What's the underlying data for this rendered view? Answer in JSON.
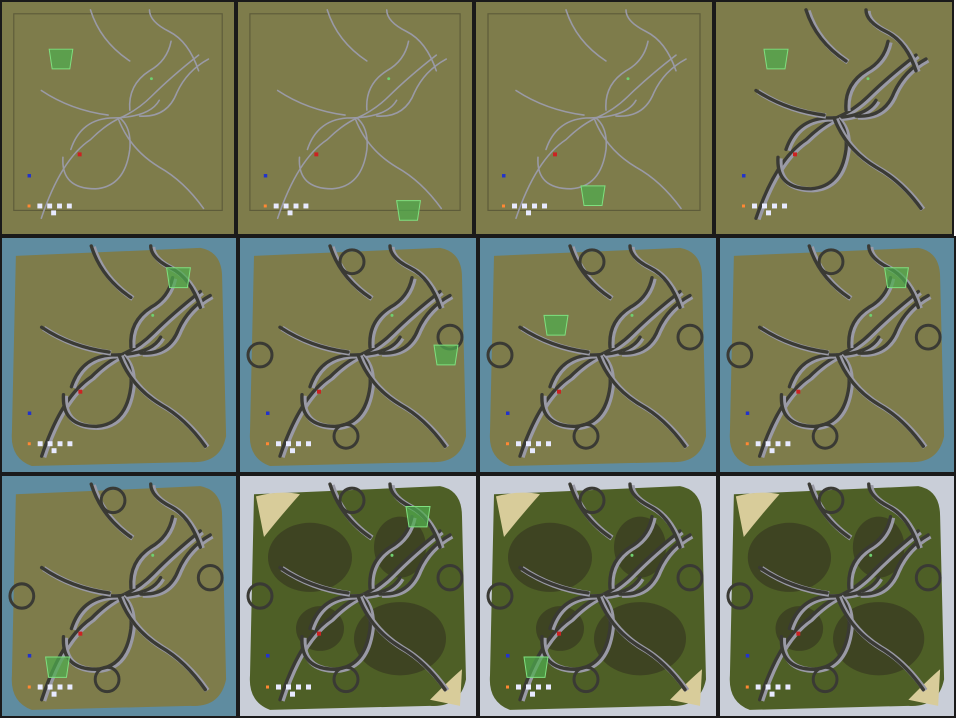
{
  "colors": {
    "grass": "#7e7c4b",
    "grass_dark": "#6f6d40",
    "water": "#5f8ca0",
    "road_dark": "#3a3a34",
    "road_light": "#9a9aa6",
    "highlight": "#4fae4f",
    "player_red": "#cc2222",
    "player_blue": "#2233cc",
    "marker_orange": "#ff8833",
    "marker_white": "#e8eaff",
    "textured_grass": "#4e5f26",
    "textured_dark": "#3e4422",
    "sand": "#d8cc9a",
    "snow": "#c9ced8"
  },
  "panels": [
    {
      "id": 1,
      "stage": "outline",
      "water": false,
      "circles": 0,
      "highlight": "top-left",
      "textured": false
    },
    {
      "id": 2,
      "stage": "outline",
      "water": false,
      "circles": 0,
      "highlight": "bottom-right",
      "textured": false
    },
    {
      "id": 3,
      "stage": "outline",
      "water": false,
      "circles": 0,
      "highlight": "bottom-center",
      "textured": false
    },
    {
      "id": 4,
      "stage": "carved",
      "water": false,
      "circles": 0,
      "highlight": "top-left",
      "textured": false
    },
    {
      "id": 5,
      "stage": "carved",
      "water": true,
      "circles": 0,
      "highlight": "top-right",
      "textured": false
    },
    {
      "id": 6,
      "stage": "carved",
      "water": true,
      "circles": 4,
      "highlight": "right",
      "textured": false
    },
    {
      "id": 7,
      "stage": "carved",
      "water": true,
      "circles": 4,
      "highlight": "center-left",
      "textured": false
    },
    {
      "id": 8,
      "stage": "carved",
      "water": true,
      "circles": 4,
      "highlight": "top-right",
      "textured": false
    },
    {
      "id": 9,
      "stage": "carved",
      "water": true,
      "circles": 4,
      "highlight": "bottom-left",
      "textured": false
    },
    {
      "id": 10,
      "stage": "textured",
      "water": true,
      "circles": 4,
      "highlight": "top-right",
      "textured": true
    },
    {
      "id": 11,
      "stage": "textured",
      "water": true,
      "circles": 4,
      "highlight": "bottom-left",
      "textured": true
    },
    {
      "id": 12,
      "stage": "textured",
      "water": true,
      "circles": 4,
      "highlight": "none",
      "textured": true
    }
  ]
}
